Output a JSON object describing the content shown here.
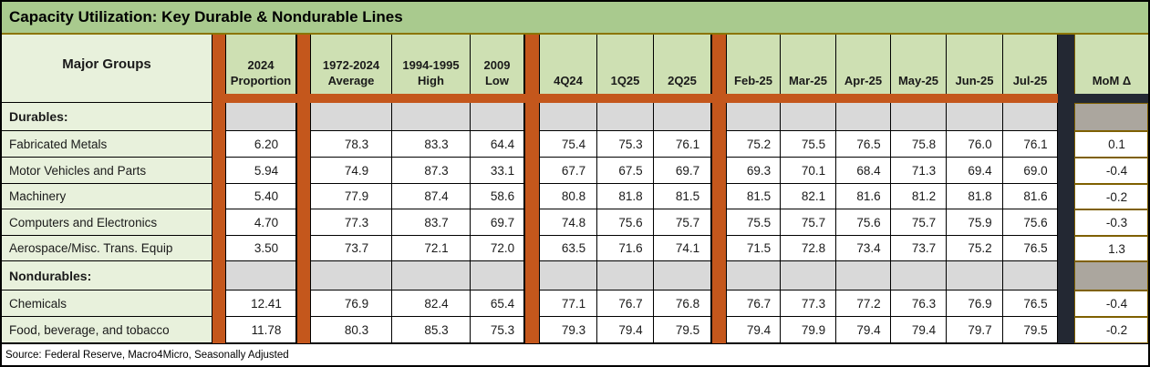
{
  "title": "Capacity Utilization: Key Durable & Nondurable Lines",
  "source": "Source: Federal Reserve, Macro4Micro, Seasonally Adjusted",
  "row_header_label": "Major Groups",
  "column_headers": [
    "2024\nProportion",
    "1972-2024\nAverage",
    "1994-1995\nHigh",
    "2009\nLow",
    "4Q24",
    "1Q25",
    "2Q25",
    "Feb-25",
    "Mar-25",
    "Apr-25",
    "May-25",
    "Jun-25",
    "Jul-25",
    "MoM Δ"
  ],
  "rows": [
    {
      "type": "section",
      "label": "Durables:"
    },
    {
      "type": "data",
      "label": "Fabricated Metals",
      "values": [
        "6.20",
        "78.3",
        "83.3",
        "64.4",
        "75.4",
        "75.3",
        "76.1",
        "75.2",
        "75.5",
        "76.5",
        "75.8",
        "76.0",
        "76.1",
        "0.1"
      ]
    },
    {
      "type": "data",
      "label": "Motor Vehicles and Parts",
      "values": [
        "5.94",
        "74.9",
        "87.3",
        "33.1",
        "67.7",
        "67.5",
        "69.7",
        "69.3",
        "70.1",
        "68.4",
        "71.3",
        "69.4",
        "69.0",
        "-0.4"
      ]
    },
    {
      "type": "data",
      "label": "Machinery",
      "values": [
        "5.40",
        "77.9",
        "87.4",
        "58.6",
        "80.8",
        "81.8",
        "81.5",
        "81.5",
        "82.1",
        "81.6",
        "81.2",
        "81.8",
        "81.6",
        "-0.2"
      ]
    },
    {
      "type": "data",
      "label": "Computers and Electronics",
      "values": [
        "4.70",
        "77.3",
        "83.7",
        "69.7",
        "74.8",
        "75.6",
        "75.7",
        "75.5",
        "75.7",
        "75.6",
        "75.7",
        "75.9",
        "75.6",
        "-0.3"
      ]
    },
    {
      "type": "data",
      "label": "Aerospace/Misc. Trans. Equip",
      "values": [
        "3.50",
        "73.7",
        "72.1",
        "72.0",
        "63.5",
        "71.6",
        "74.1",
        "71.5",
        "72.8",
        "73.4",
        "73.7",
        "75.2",
        "76.5",
        "1.3"
      ]
    },
    {
      "type": "section",
      "label": "Nondurables:"
    },
    {
      "type": "data",
      "label": "Chemicals",
      "values": [
        "12.41",
        "76.9",
        "82.4",
        "65.4",
        "77.1",
        "76.7",
        "76.8",
        "76.7",
        "77.3",
        "77.2",
        "76.3",
        "76.9",
        "76.5",
        "-0.4"
      ]
    },
    {
      "type": "data",
      "label": "Food, beverage, and tobacco",
      "values": [
        "11.78",
        "80.3",
        "85.3",
        "75.3",
        "79.3",
        "79.4",
        "79.5",
        "79.4",
        "79.9",
        "79.4",
        "79.4",
        "79.7",
        "79.5",
        "-0.2"
      ]
    }
  ],
  "colors": {
    "title_bar": "#A9CA8E",
    "header_cell": "#CEE0B3",
    "row_label": "#E8F1DC",
    "divider_orange": "#C4571C",
    "divider_black": "#232833",
    "section_fill": "#D9D9D9",
    "section_mom_fill": "#ABA69E",
    "mom_border": "#7F6000",
    "title_underline": "#8B7500"
  }
}
